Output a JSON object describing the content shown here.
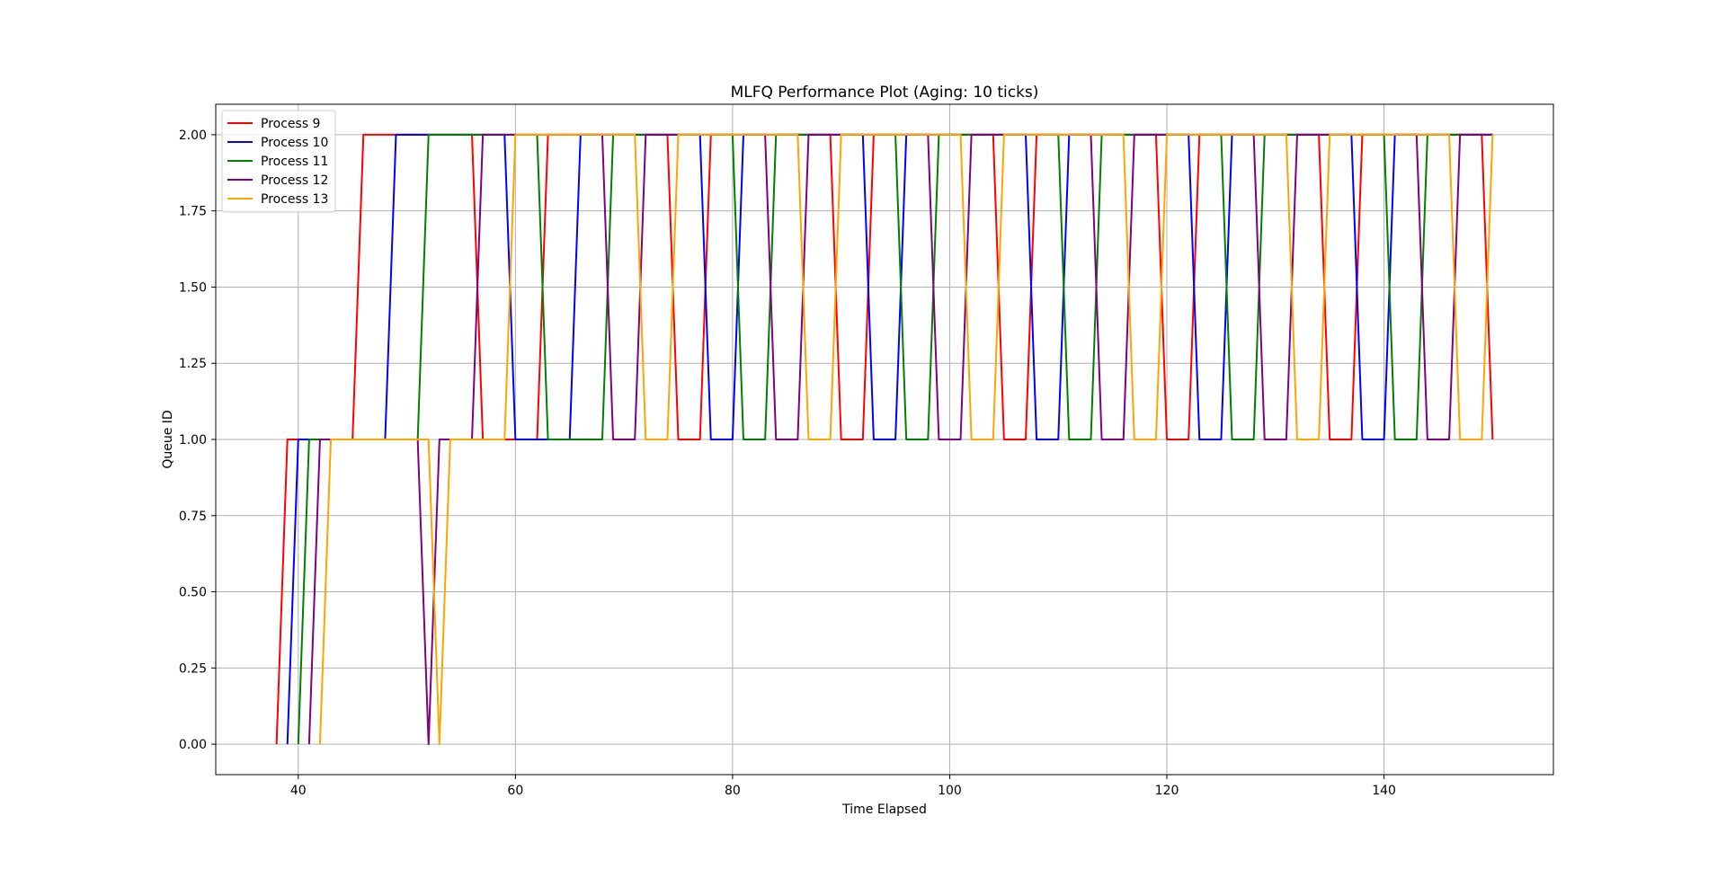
{
  "chart_data": {
    "type": "line",
    "title": "MLFQ Performance Plot (Aging: 10 ticks)",
    "xlabel": "Time Elapsed",
    "ylabel": "Queue ID",
    "xlim": [
      32.4,
      155.6
    ],
    "ylim": [
      -0.1,
      2.1
    ],
    "xticks": [
      40,
      60,
      80,
      100,
      120,
      140
    ],
    "xtick_labels": [
      "40",
      "60",
      "80",
      "100",
      "120",
      "140"
    ],
    "yticks": [
      0,
      0.25,
      0.5,
      0.75,
      1,
      1.25,
      1.5,
      1.75,
      2
    ],
    "ytick_labels": [
      "0.00",
      "0.25",
      "0.50",
      "0.75",
      "1.00",
      "1.25",
      "1.50",
      "1.75",
      "2.00"
    ],
    "grid": true,
    "legend_position": "upper-left",
    "series": [
      {
        "name": "Process 9",
        "color": "#ff0000",
        "points": [
          [
            38,
            0
          ],
          [
            39,
            1
          ],
          [
            45,
            1
          ],
          [
            46,
            2
          ],
          [
            56,
            2
          ],
          [
            57,
            1
          ],
          [
            62,
            1
          ],
          [
            63,
            2
          ],
          [
            74,
            2
          ],
          [
            75,
            1
          ],
          [
            77,
            1
          ],
          [
            78,
            2
          ],
          [
            89,
            2
          ],
          [
            90,
            1
          ],
          [
            92,
            1
          ],
          [
            93,
            2
          ],
          [
            104,
            2
          ],
          [
            105,
            1
          ],
          [
            107,
            1
          ],
          [
            108,
            2
          ],
          [
            119,
            2
          ],
          [
            120,
            1
          ],
          [
            122,
            1
          ],
          [
            123,
            2
          ],
          [
            134,
            2
          ],
          [
            135,
            1
          ],
          [
            137,
            1
          ],
          [
            138,
            2
          ],
          [
            149,
            2
          ],
          [
            150,
            1
          ]
        ]
      },
      {
        "name": "Process 10",
        "color": "#0000ff",
        "points": [
          [
            39,
            0
          ],
          [
            40,
            1
          ],
          [
            48,
            1
          ],
          [
            49,
            2
          ],
          [
            59,
            2
          ],
          [
            60,
            1
          ],
          [
            65,
            1
          ],
          [
            66,
            2
          ],
          [
            77,
            2
          ],
          [
            78,
            1
          ],
          [
            80,
            1
          ],
          [
            81,
            2
          ],
          [
            92,
            2
          ],
          [
            93,
            1
          ],
          [
            95,
            1
          ],
          [
            96,
            2
          ],
          [
            107,
            2
          ],
          [
            108,
            1
          ],
          [
            110,
            1
          ],
          [
            111,
            2
          ],
          [
            122,
            2
          ],
          [
            123,
            1
          ],
          [
            125,
            1
          ],
          [
            126,
            2
          ],
          [
            137,
            2
          ],
          [
            138,
            1
          ],
          [
            140,
            1
          ],
          [
            141,
            2
          ],
          [
            150,
            2
          ]
        ]
      },
      {
        "name": "Process 11",
        "color": "#008000",
        "points": [
          [
            40,
            0
          ],
          [
            41,
            1
          ],
          [
            51,
            1
          ],
          [
            52,
            2
          ],
          [
            62,
            2
          ],
          [
            63,
            1
          ],
          [
            68,
            1
          ],
          [
            69,
            2
          ],
          [
            80,
            2
          ],
          [
            81,
            1
          ],
          [
            83,
            1
          ],
          [
            84,
            2
          ],
          [
            95,
            2
          ],
          [
            96,
            1
          ],
          [
            98,
            1
          ],
          [
            99,
            2
          ],
          [
            110,
            2
          ],
          [
            111,
            1
          ],
          [
            113,
            1
          ],
          [
            114,
            2
          ],
          [
            125,
            2
          ],
          [
            126,
            1
          ],
          [
            128,
            1
          ],
          [
            129,
            2
          ],
          [
            140,
            2
          ],
          [
            141,
            1
          ],
          [
            143,
            1
          ],
          [
            144,
            2
          ],
          [
            150,
            2
          ]
        ]
      },
      {
        "name": "Process 12",
        "color": "#800080",
        "points": [
          [
            41,
            0
          ],
          [
            42,
            1
          ],
          [
            51,
            1
          ],
          [
            52,
            0
          ],
          [
            53,
            1
          ],
          [
            56,
            1
          ],
          [
            57,
            2
          ],
          [
            68,
            2
          ],
          [
            69,
            1
          ],
          [
            71,
            1
          ],
          [
            72,
            2
          ],
          [
            83,
            2
          ],
          [
            84,
            1
          ],
          [
            86,
            1
          ],
          [
            87,
            2
          ],
          [
            98,
            2
          ],
          [
            99,
            1
          ],
          [
            101,
            1
          ],
          [
            102,
            2
          ],
          [
            113,
            2
          ],
          [
            114,
            1
          ],
          [
            116,
            1
          ],
          [
            117,
            2
          ],
          [
            128,
            2
          ],
          [
            129,
            1
          ],
          [
            131,
            1
          ],
          [
            132,
            2
          ],
          [
            143,
            2
          ],
          [
            144,
            1
          ],
          [
            146,
            1
          ],
          [
            147,
            2
          ],
          [
            150,
            2
          ]
        ]
      },
      {
        "name": "Process 13",
        "color": "#ffa500",
        "points": [
          [
            42,
            0
          ],
          [
            43,
            1
          ],
          [
            52,
            1
          ],
          [
            53,
            0
          ],
          [
            54,
            1
          ],
          [
            59,
            1
          ],
          [
            60,
            2
          ],
          [
            71,
            2
          ],
          [
            72,
            1
          ],
          [
            74,
            1
          ],
          [
            75,
            2
          ],
          [
            86,
            2
          ],
          [
            87,
            1
          ],
          [
            89,
            1
          ],
          [
            90,
            2
          ],
          [
            101,
            2
          ],
          [
            102,
            1
          ],
          [
            104,
            1
          ],
          [
            105,
            2
          ],
          [
            116,
            2
          ],
          [
            117,
            1
          ],
          [
            119,
            1
          ],
          [
            120,
            2
          ],
          [
            131,
            2
          ],
          [
            132,
            1
          ],
          [
            134,
            1
          ],
          [
            135,
            2
          ],
          [
            146,
            2
          ],
          [
            147,
            1
          ],
          [
            149,
            1
          ],
          [
            150,
            2
          ]
        ]
      }
    ]
  }
}
